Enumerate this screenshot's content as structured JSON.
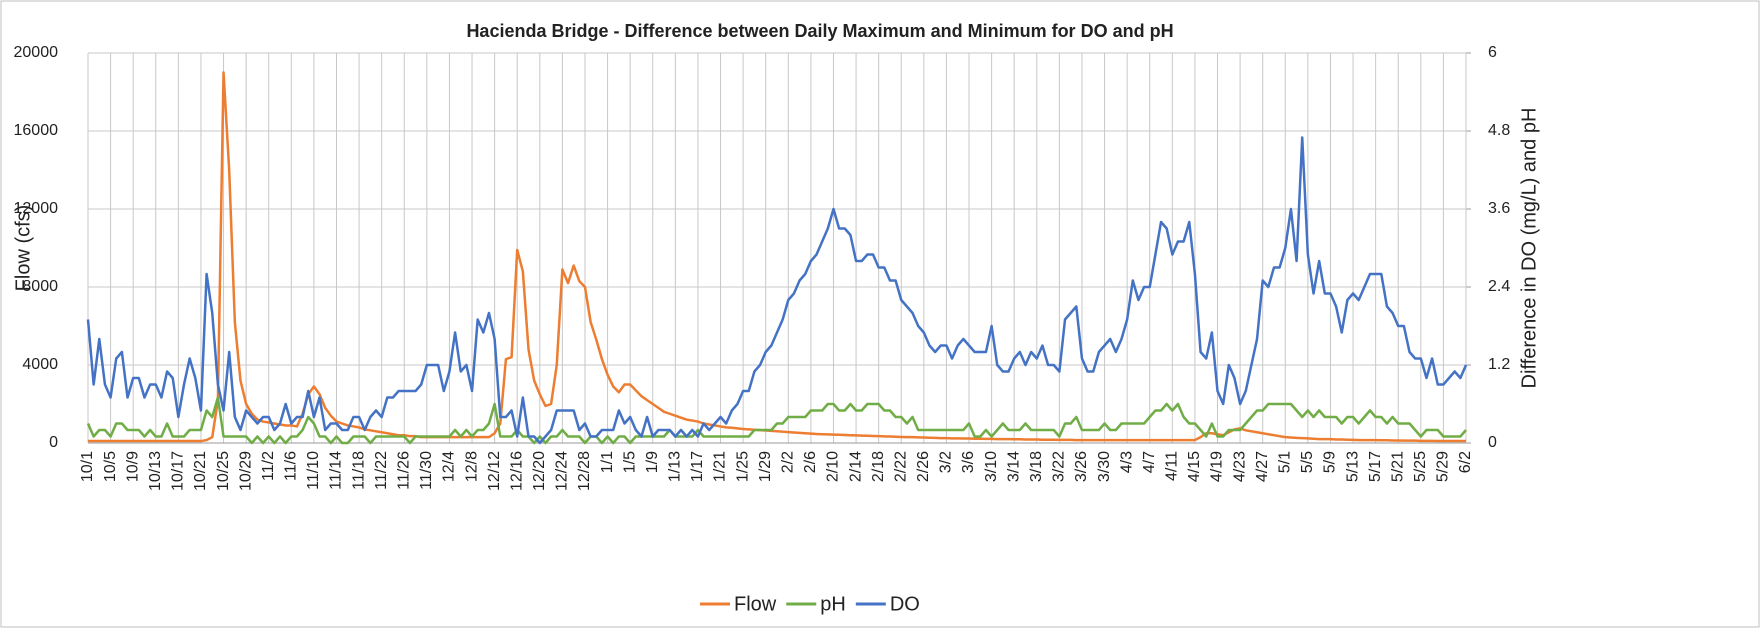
{
  "chart_data": {
    "type": "line",
    "title": "Hacienda Bridge - Difference between Daily Maximum and Minimum for DO and pH",
    "y_label": "Flow (cfs)",
    "y2_label": "Difference in DO (mg/L) and pH",
    "categories": [
      "10/1",
      null,
      null,
      null,
      "10/5",
      null,
      null,
      null,
      "10/9",
      null,
      null,
      null,
      "10/13",
      null,
      null,
      null,
      "10/17",
      null,
      null,
      null,
      "10/21",
      null,
      null,
      null,
      "10/25",
      null,
      null,
      null,
      "10/29",
      null,
      null,
      null,
      "11/2",
      null,
      null,
      null,
      "11/6",
      null,
      null,
      null,
      "11/10",
      null,
      null,
      null,
      "11/14",
      null,
      null,
      null,
      "11/18",
      null,
      null,
      null,
      "11/22",
      null,
      null,
      null,
      "11/26",
      null,
      null,
      null,
      "11/30",
      null,
      null,
      null,
      "12/4",
      null,
      null,
      null,
      "12/8",
      null,
      null,
      null,
      "12/12",
      null,
      null,
      null,
      "12/16",
      null,
      null,
      null,
      "12/20",
      null,
      null,
      null,
      "12/24",
      null,
      null,
      null,
      "12/28",
      null,
      null,
      null,
      "1/1",
      null,
      null,
      null,
      "1/5",
      null,
      null,
      null,
      "1/9",
      null,
      null,
      null,
      "1/13",
      null,
      null,
      null,
      "1/17",
      null,
      null,
      null,
      "1/21",
      null,
      null,
      null,
      "1/25",
      null,
      null,
      null,
      "1/29",
      null,
      null,
      null,
      "2/2",
      null,
      null,
      null,
      "2/6",
      null,
      null,
      null,
      "2/10",
      null,
      null,
      null,
      "2/14",
      null,
      null,
      null,
      "2/18",
      null,
      null,
      null,
      "2/22",
      null,
      null,
      null,
      "2/26",
      null,
      null,
      null,
      "3/2",
      null,
      null,
      null,
      "3/6",
      null,
      null,
      null,
      "3/10",
      null,
      null,
      null,
      "3/14",
      null,
      null,
      null,
      "3/18",
      null,
      null,
      null,
      "3/22",
      null,
      null,
      null,
      "3/26",
      null,
      null,
      null,
      "3/30",
      null,
      null,
      null,
      "4/3",
      null,
      null,
      null,
      "4/7",
      null,
      null,
      null,
      "4/11",
      null,
      null,
      null,
      "4/15",
      null,
      null,
      null,
      "4/19",
      null,
      null,
      null,
      "4/23",
      null,
      null,
      null,
      "4/27",
      null,
      null,
      null,
      "5/1",
      null,
      null,
      null,
      "5/5",
      null,
      null,
      null,
      "5/9",
      null,
      null,
      null,
      "5/13",
      null,
      null,
      null,
      "5/17",
      null,
      null,
      null,
      "5/21",
      null,
      null,
      null,
      "5/25",
      null,
      null,
      null,
      "5/29",
      null,
      null,
      null,
      "6/2"
    ],
    "series": [
      {
        "name": "Flow",
        "color": "#ed7d31",
        "axis": "y",
        "values": [
          100,
          100,
          100,
          100,
          100,
          100,
          100,
          100,
          100,
          100,
          100,
          100,
          100,
          100,
          100,
          100,
          100,
          100,
          100,
          100,
          100,
          150,
          300,
          2200,
          19000,
          14000,
          6200,
          3200,
          2000,
          1500,
          1200,
          1100,
          1050,
          1000,
          950,
          900,
          900,
          850,
          1500,
          2500,
          2900,
          2500,
          1800,
          1400,
          1100,
          1000,
          900,
          850,
          800,
          700,
          650,
          600,
          550,
          500,
          450,
          400,
          400,
          350,
          350,
          300,
          300,
          300,
          300,
          300,
          300,
          300,
          300,
          300,
          300,
          300,
          300,
          300,
          500,
          1000,
          4300,
          4400,
          9900,
          8800,
          4800,
          3200,
          2500,
          1900,
          2000,
          4000,
          8900,
          8200,
          9100,
          8300,
          8000,
          6200,
          5300,
          4300,
          3500,
          2900,
          2600,
          3000,
          3000,
          2700,
          2400,
          2200,
          2000,
          1800,
          1600,
          1500,
          1400,
          1300,
          1200,
          1150,
          1100,
          1000,
          950,
          900,
          850,
          800,
          780,
          750,
          720,
          700,
          680,
          660,
          640,
          620,
          600,
          580,
          560,
          540,
          520,
          500,
          480,
          460,
          450,
          440,
          430,
          420,
          410,
          400,
          390,
          380,
          370,
          360,
          350,
          340,
          330,
          320,
          310,
          300,
          300,
          290,
          280,
          270,
          260,
          250,
          250,
          240,
          240,
          230,
          230,
          220,
          220,
          210,
          210,
          200,
          200,
          200,
          190,
          190,
          180,
          180,
          180,
          170,
          170,
          170,
          160,
          160,
          160,
          150,
          150,
          150,
          150,
          150,
          150,
          150,
          150,
          150,
          150,
          150,
          150,
          150,
          150,
          150,
          150,
          150,
          150,
          150,
          150,
          150,
          150,
          300,
          500,
          500,
          450,
          400,
          550,
          700,
          750,
          650,
          600,
          550,
          500,
          450,
          400,
          350,
          300,
          280,
          260,
          250,
          240,
          220,
          200,
          200,
          200,
          180,
          180,
          170,
          160,
          150,
          150,
          150,
          150,
          140,
          140,
          130,
          130,
          120,
          120,
          120,
          110,
          110,
          110,
          100,
          100,
          100,
          100,
          100,
          100
        ]
      },
      {
        "name": "pH",
        "color": "#70ad47",
        "axis": "y2",
        "values": [
          0.3,
          0.1,
          0.2,
          0.2,
          0.1,
          0.3,
          0.3,
          0.2,
          0.2,
          0.2,
          0.1,
          0.2,
          0.1,
          0.1,
          0.3,
          0.1,
          0.1,
          0.1,
          0.2,
          0.2,
          0.2,
          0.5,
          0.4,
          0.7,
          0.1,
          0.1,
          0.1,
          0.1,
          0.1,
          0.0,
          0.1,
          0.0,
          0.1,
          0.0,
          0.1,
          0.0,
          0.1,
          0.1,
          0.2,
          0.4,
          0.3,
          0.1,
          0.1,
          0.0,
          0.1,
          0.0,
          0.0,
          0.1,
          0.1,
          0.1,
          0.0,
          0.1,
          0.1,
          0.1,
          0.1,
          0.1,
          0.1,
          0.0,
          0.1,
          0.1,
          0.1,
          0.1,
          0.1,
          0.1,
          0.1,
          0.2,
          0.1,
          0.2,
          0.1,
          0.2,
          0.2,
          0.3,
          0.6,
          0.1,
          0.1,
          0.1,
          0.2,
          0.1,
          0.1,
          0.0,
          0.1,
          0.0,
          0.1,
          0.1,
          0.2,
          0.1,
          0.1,
          0.1,
          0.0,
          0.1,
          0.1,
          0.0,
          0.1,
          0.0,
          0.1,
          0.1,
          0.0,
          0.1,
          0.1,
          0.1,
          0.1,
          0.1,
          0.1,
          0.2,
          0.1,
          0.1,
          0.1,
          0.1,
          0.2,
          0.1,
          0.1,
          0.1,
          0.1,
          0.1,
          0.1,
          0.1,
          0.1,
          0.1,
          0.2,
          0.2,
          0.2,
          0.2,
          0.3,
          0.3,
          0.4,
          0.4,
          0.4,
          0.4,
          0.5,
          0.5,
          0.5,
          0.6,
          0.6,
          0.5,
          0.5,
          0.6,
          0.5,
          0.5,
          0.6,
          0.6,
          0.6,
          0.5,
          0.5,
          0.4,
          0.4,
          0.3,
          0.4,
          0.2,
          0.2,
          0.2,
          0.2,
          0.2,
          0.2,
          0.2,
          0.2,
          0.2,
          0.3,
          0.1,
          0.1,
          0.2,
          0.1,
          0.2,
          0.3,
          0.2,
          0.2,
          0.2,
          0.3,
          0.2,
          0.2,
          0.2,
          0.2,
          0.2,
          0.1,
          0.3,
          0.3,
          0.4,
          0.2,
          0.2,
          0.2,
          0.2,
          0.3,
          0.2,
          0.2,
          0.3,
          0.3,
          0.3,
          0.3,
          0.3,
          0.4,
          0.5,
          0.5,
          0.6,
          0.5,
          0.6,
          0.4,
          0.3,
          0.3,
          0.2,
          0.1,
          0.3,
          0.1,
          0.1,
          0.2,
          0.2,
          0.2,
          0.3,
          0.4,
          0.5,
          0.5,
          0.6,
          0.6,
          0.6,
          0.6,
          0.6,
          0.5,
          0.4,
          0.5,
          0.4,
          0.5,
          0.4,
          0.4,
          0.4,
          0.3,
          0.4,
          0.4,
          0.3,
          0.4,
          0.5,
          0.4,
          0.4,
          0.3,
          0.4,
          0.3,
          0.3,
          0.3,
          0.2,
          0.1,
          0.2,
          0.2,
          0.2,
          0.1,
          0.1,
          0.1,
          0.1,
          0.2
        ]
      },
      {
        "name": "DO",
        "color": "#4472c4",
        "axis": "y2",
        "values": [
          1.9,
          0.9,
          1.6,
          0.9,
          0.7,
          1.3,
          1.4,
          0.7,
          1.0,
          1.0,
          0.7,
          0.9,
          0.9,
          0.7,
          1.1,
          1.0,
          0.4,
          0.9,
          1.3,
          1.0,
          0.5,
          2.6,
          2.0,
          0.9,
          0.5,
          1.4,
          0.4,
          0.2,
          0.5,
          0.4,
          0.3,
          0.4,
          0.4,
          0.2,
          0.3,
          0.6,
          0.3,
          0.4,
          0.4,
          0.8,
          0.4,
          0.7,
          0.2,
          0.3,
          0.3,
          0.2,
          0.2,
          0.4,
          0.4,
          0.2,
          0.4,
          0.5,
          0.4,
          0.7,
          0.7,
          0.8,
          0.8,
          0.8,
          0.8,
          0.9,
          1.2,
          1.2,
          1.2,
          0.8,
          1.1,
          1.7,
          1.1,
          1.2,
          0.8,
          1.9,
          1.7,
          2.0,
          1.6,
          0.4,
          0.4,
          0.5,
          0.1,
          0.7,
          0.1,
          0.1,
          0.0,
          0.1,
          0.2,
          0.5,
          0.5,
          0.5,
          0.5,
          0.2,
          0.3,
          0.1,
          0.1,
          0.2,
          0.2,
          0.2,
          0.5,
          0.3,
          0.4,
          0.2,
          0.1,
          0.4,
          0.1,
          0.2,
          0.2,
          0.2,
          0.1,
          0.2,
          0.1,
          0.2,
          0.1,
          0.3,
          0.2,
          0.3,
          0.4,
          0.3,
          0.5,
          0.6,
          0.8,
          0.8,
          1.1,
          1.2,
          1.4,
          1.5,
          1.7,
          1.9,
          2.2,
          2.3,
          2.5,
          2.6,
          2.8,
          2.9,
          3.1,
          3.3,
          3.6,
          3.3,
          3.3,
          3.2,
          2.8,
          2.8,
          2.9,
          2.9,
          2.7,
          2.7,
          2.5,
          2.5,
          2.2,
          2.1,
          2.0,
          1.8,
          1.7,
          1.5,
          1.4,
          1.5,
          1.5,
          1.3,
          1.5,
          1.6,
          1.5,
          1.4,
          1.4,
          1.4,
          1.8,
          1.2,
          1.1,
          1.1,
          1.3,
          1.4,
          1.2,
          1.4,
          1.3,
          1.5,
          1.2,
          1.2,
          1.1,
          1.9,
          2.0,
          2.1,
          1.3,
          1.1,
          1.1,
          1.4,
          1.5,
          1.6,
          1.4,
          1.6,
          1.9,
          2.5,
          2.2,
          2.4,
          2.4,
          2.9,
          3.4,
          3.3,
          2.9,
          3.1,
          3.1,
          3.4,
          2.6,
          1.4,
          1.3,
          1.7,
          0.8,
          0.6,
          1.2,
          1.0,
          0.6,
          0.8,
          1.2,
          1.6,
          2.5,
          2.4,
          2.7,
          2.7,
          3.0,
          3.6,
          2.8,
          4.7,
          2.9,
          2.3,
          2.8,
          2.3,
          2.3,
          2.1,
          1.7,
          2.2,
          2.3,
          2.2,
          2.4,
          2.6,
          2.6,
          2.6,
          2.1,
          2.0,
          1.8,
          1.8,
          1.4,
          1.3,
          1.3,
          1.0,
          1.3,
          0.9,
          0.9,
          1.0,
          1.1,
          1.0,
          1.2
        ]
      }
    ],
    "ylim": [
      0,
      20000
    ],
    "yticks": [
      0,
      4000,
      8000,
      12000,
      16000,
      20000
    ],
    "y2lim": [
      0,
      6
    ],
    "y2ticks": [
      0,
      1.2,
      2.4,
      3.6,
      4.8,
      6
    ],
    "grid": true,
    "legend": "bottom"
  }
}
